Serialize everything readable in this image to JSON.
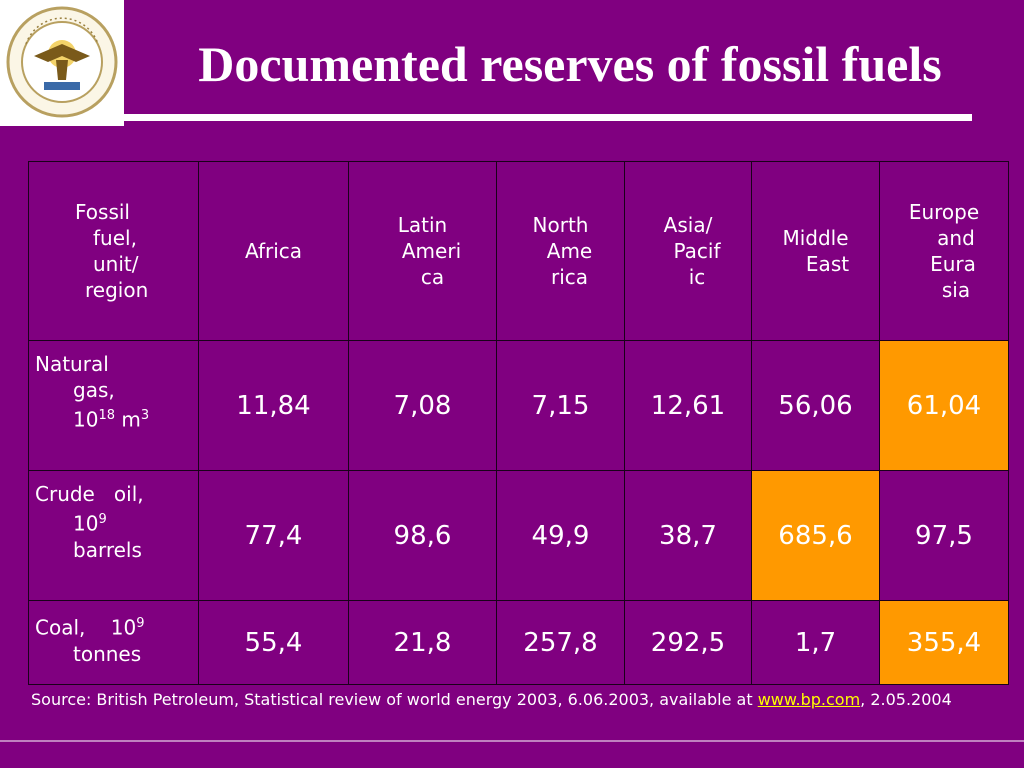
{
  "slide": {
    "title": "Documented reserves of fossil fuels",
    "logo_alt": "University seal",
    "colors": {
      "background": "#800080",
      "highlight": "#ff9900",
      "text": "#ffffff",
      "link": "#ffff00"
    }
  },
  "table": {
    "header": {
      "corner": [
        "Fossil",
        "fuel,",
        "unit/",
        "region"
      ],
      "africa": [
        "Africa"
      ],
      "latin_america": [
        "Latin",
        "Ameri",
        "ca"
      ],
      "north_america": [
        "North",
        "Ame",
        "rica"
      ],
      "asia_pacific": [
        "Asia/",
        "Pacif",
        "ic"
      ],
      "middle_east": [
        "Middle",
        "East"
      ],
      "europe_eurasia": [
        "Europe",
        "and",
        "Eura",
        "sia"
      ]
    },
    "rows": [
      {
        "label_line1": "Natural",
        "label_line2": "gas,",
        "label_line3_base": "10",
        "label_line3_sup": "18",
        "label_line3_unit": " m",
        "label_line3_unit_sup": "3",
        "values": [
          "11,84",
          "7,08",
          "7,15",
          "12,61",
          "56,06",
          "61,04"
        ]
      },
      {
        "label_line1": "Crude   oil,",
        "label_line2_base": "10",
        "label_line2_sup": "9",
        "label_line3": "barrels",
        "values": [
          "77,4",
          "98,6",
          "49,9",
          "38,7",
          "685,6",
          "97,5"
        ]
      },
      {
        "label_line1_base": "Coal,    10",
        "label_line1_sup": "9",
        "label_line2": "tonnes",
        "values": [
          "55,4",
          "21,8",
          "257,8",
          "292,5",
          "1,7",
          "355,4"
        ]
      }
    ]
  },
  "source": {
    "prefix": "Source: British Petroleum, Statistical review of world energy 2003, 6.06.2003, available at ",
    "link": "www.bp.com",
    "suffix": ", 2.05.2004"
  },
  "chart_data": {
    "type": "table",
    "title": "Documented reserves of fossil fuels",
    "columns": [
      "Fossil fuel, unit/ region",
      "Africa",
      "Latin America",
      "North America",
      "Asia/ Pacific",
      "Middle East",
      "Europe and Eurasia"
    ],
    "rows": [
      [
        "Natural gas, 10^18 m^3",
        "11,84",
        "7,08",
        "7,15",
        "12,61",
        "56,06",
        "61,04"
      ],
      [
        "Crude oil, 10^9 barrels",
        "77,4",
        "98,6",
        "49,9",
        "38,7",
        "685,6",
        "97,5"
      ],
      [
        "Coal, 10^9 tonnes",
        "55,4",
        "21,8",
        "257,8",
        "292,5",
        "1,7",
        "355,4"
      ]
    ],
    "highlighted_cells": [
      [
        0,
        6
      ],
      [
        1,
        5
      ],
      [
        2,
        6
      ]
    ]
  }
}
